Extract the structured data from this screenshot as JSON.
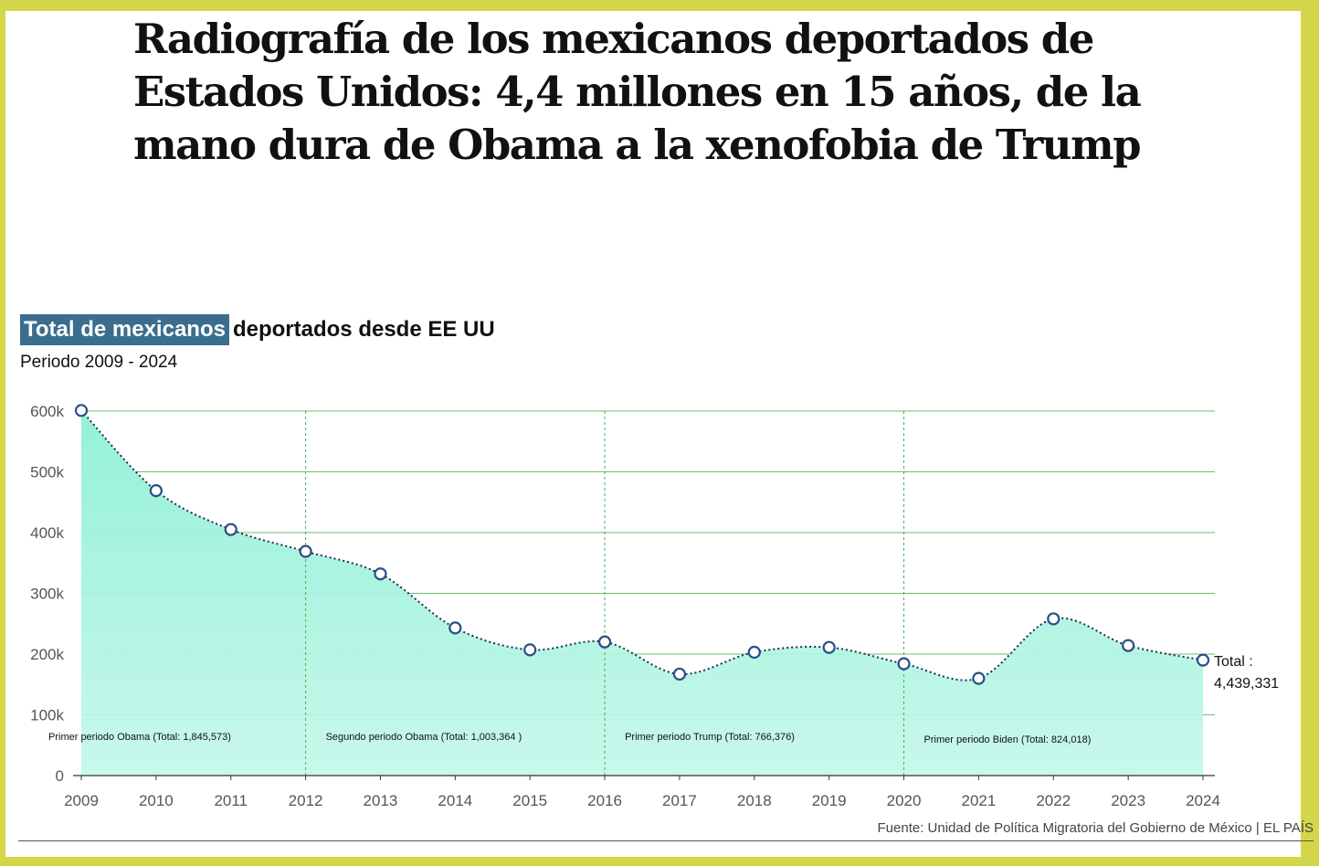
{
  "headline": "Radiografía de los mexicanos deportados de Estados Unidos: 4,4 millones en 15 años, de la mano dura de Obama a la xenofobia de Trump",
  "chart_title_highlight": "Total de mexicanos",
  "chart_title_rest": "deportados desde EE UU",
  "chart_subtitle": "Periodo 2009 - 2024",
  "source": "Fuente: Unidad de Política Migratoria del Gobierno de México | EL PAÍS",
  "colors": {
    "area_fill": "#8ef0d6",
    "line": "#1b2f4a",
    "marker_stroke": "#2b4f86",
    "grid": "#4caf50",
    "highlight_bg": "#3b6e8e",
    "frame": "#d4d64a"
  },
  "chart_data": {
    "type": "area",
    "x": [
      "2009",
      "2010",
      "2011",
      "2012",
      "2013",
      "2014",
      "2015",
      "2016",
      "2017",
      "2018",
      "2019",
      "2020",
      "2021",
      "2022",
      "2023",
      "2024"
    ],
    "series": [
      {
        "values": [
          601000,
          469000,
          405000,
          369000,
          332000,
          243000,
          207000,
          220000,
          167000,
          203000,
          211000,
          184000,
          160000,
          258000,
          214000,
          190000
        ]
      }
    ],
    "ylim": [
      0,
      600000
    ],
    "yticks": [
      0,
      100000,
      200000,
      300000,
      400000,
      500000,
      600000
    ],
    "ytick_labels": [
      "0",
      "100k",
      "200k",
      "300k",
      "400k",
      "500k",
      "600k"
    ],
    "grid": true,
    "periods": [
      {
        "label": "Primer periodo Obama (Total: 1,845,573)",
        "start": "2009"
      },
      {
        "label": "Segundo periodo Obama (Total: 1,003,364 )",
        "start": "2012"
      },
      {
        "label": "Primer periodo Trump (Total: 766,376)",
        "start": "2016"
      },
      {
        "label": "Primer periodo Biden (Total: 824,018)",
        "start": "2020"
      }
    ],
    "end_annotation": [
      "Total :",
      "4,439,331"
    ]
  }
}
